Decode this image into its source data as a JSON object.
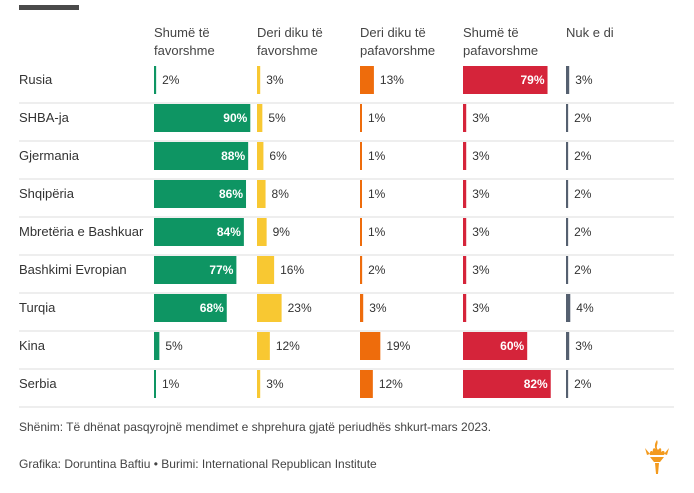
{
  "chart_data": {
    "type": "bar",
    "categories": [
      "Rusia",
      "SHBA-ja",
      "Gjermania",
      "Shqipëria",
      "Mbretëria e Bashkuar",
      "Bashkimi Evropian",
      "Turqia",
      "Kina",
      "Serbia"
    ],
    "series": [
      {
        "name": "Shumë të favorshme",
        "color": "#0e9563",
        "values": [
          2,
          90,
          88,
          86,
          84,
          77,
          68,
          5,
          1
        ]
      },
      {
        "name": "Deri diku të favorshme",
        "color": "#f8c832",
        "values": [
          3,
          5,
          6,
          8,
          9,
          16,
          23,
          12,
          3
        ]
      },
      {
        "name": "Deri diku të pafavorshme",
        "color": "#ee6c0c",
        "values": [
          13,
          1,
          1,
          1,
          1,
          2,
          3,
          19,
          12
        ]
      },
      {
        "name": "Shumë të pafavorshme",
        "color": "#d5243a",
        "values": [
          79,
          3,
          3,
          3,
          3,
          3,
          3,
          60,
          82
        ]
      },
      {
        "name": "Nuk e di",
        "color": "#556070",
        "values": [
          3,
          2,
          2,
          2,
          2,
          2,
          4,
          3,
          2
        ]
      }
    ],
    "column_headers": [
      [
        "Shumë të",
        "favorshme"
      ],
      [
        "Deri diku të",
        "favorshme"
      ],
      [
        "Deri diku të",
        "pafavorshme"
      ],
      [
        "Shumë të",
        "pafavorshme"
      ],
      [
        "Nuk e di"
      ]
    ],
    "value_suffix": "%",
    "grid": false,
    "row_dividers": true
  },
  "footer": {
    "note": "Shënim: Të dhënat pasqyrojnë mendimet e shprehura gjatë periudhës shkurt-mars 2023.",
    "credit": "Grafika: Doruntina Baftiu • Burimi: International Republican Institute"
  },
  "brand": {
    "logo_icon": "torch-icon",
    "accent": "#f39a1e"
  }
}
